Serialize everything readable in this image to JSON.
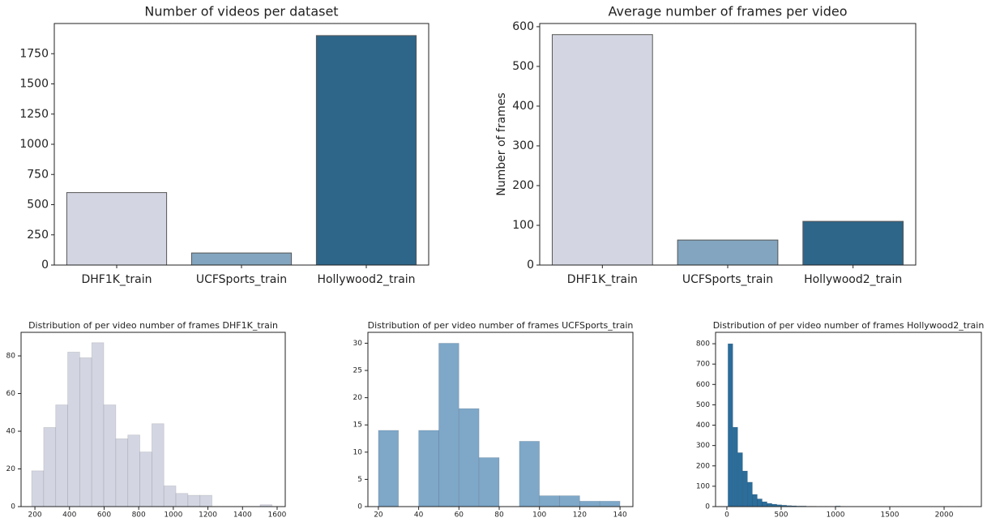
{
  "chart_data": [
    {
      "type": "bar",
      "title": "Number of videos per dataset",
      "categories": [
        "DHF1K_train",
        "UCFSports_train",
        "Hollywood2_train"
      ],
      "values": [
        600,
        100,
        1900
      ],
      "colors": [
        "#d3d6e2",
        "#83a5bf",
        "#2d6689"
      ],
      "ylim": [
        0,
        2000
      ],
      "yticks": [
        0,
        250,
        500,
        750,
        1000,
        1250,
        1500,
        1750
      ]
    },
    {
      "type": "bar",
      "title": "Average number of frames per video",
      "ylabel": "Number of frames",
      "categories": [
        "DHF1K_train",
        "UCFSports_train",
        "Hollywood2_train"
      ],
      "values": [
        580,
        63,
        110
      ],
      "colors": [
        "#d3d6e2",
        "#83a5bf",
        "#2d6689"
      ],
      "ylim": [
        0,
        608
      ],
      "yticks": [
        0,
        100,
        200,
        300,
        400,
        500,
        600
      ]
    },
    {
      "type": "histogram",
      "title": "Distribution of per video number of frames DHF1K_train",
      "bins": [
        181,
        250.5,
        320,
        389.5,
        459,
        528.5,
        598,
        667.5,
        737,
        806.5,
        876,
        945.5,
        1015,
        1084.5,
        1154,
        1223.5,
        1293,
        1362.5,
        1432,
        1501.5,
        1571
      ],
      "values": [
        19,
        42,
        54,
        82,
        79,
        87,
        54,
        36,
        38,
        29,
        44,
        11,
        7,
        6,
        6,
        0,
        0,
        0,
        0,
        1
      ],
      "color": "#d3d6e2",
      "xlim": [
        120,
        1647
      ],
      "xticks": [
        200,
        400,
        600,
        800,
        1000,
        1200,
        1400,
        1600
      ],
      "ylim": [
        0,
        92.5
      ],
      "yticks": [
        0,
        20,
        40,
        60,
        80
      ]
    },
    {
      "type": "histogram",
      "title": "Distribution of per video number of frames UCFSports_train",
      "bins": [
        20,
        30,
        40,
        50,
        60,
        70,
        80,
        90,
        100,
        110,
        120,
        130,
        140
      ],
      "values": [
        14,
        0,
        14,
        30,
        18,
        9,
        0,
        12,
        2,
        2,
        1,
        1
      ],
      "color": "#7ea7c8",
      "xlim": [
        14.8,
        146.4
      ],
      "xticks": [
        20,
        40,
        60,
        80,
        100,
        120,
        140
      ],
      "ylim": [
        0,
        32
      ],
      "yticks": [
        0,
        5,
        10,
        15,
        20,
        25,
        30
      ]
    },
    {
      "type": "histogram",
      "title": "Distribution of per video number of frames Hollywood2_train",
      "bins": [
        10,
        55,
        100,
        145,
        190,
        235,
        280,
        325,
        370,
        415,
        460,
        505,
        550,
        595,
        640,
        685,
        730,
        775,
        820,
        865,
        910,
        955,
        1000,
        1045,
        1090,
        1135,
        1180,
        1225,
        1270,
        1315,
        1360,
        1405,
        1450,
        1495,
        1540,
        1585,
        1630,
        1675,
        1720,
        1765,
        1810,
        1855,
        1900,
        1945,
        1990,
        2035,
        2080,
        2125,
        2170
      ],
      "values": [
        800,
        390,
        265,
        175,
        120,
        60,
        38,
        24,
        16,
        12,
        9,
        7,
        5,
        4,
        3,
        3,
        2,
        2,
        1,
        1,
        1,
        1,
        3,
        1,
        0,
        0,
        0,
        0,
        0,
        0,
        0,
        0,
        0,
        0,
        0,
        0,
        0,
        0,
        0,
        0,
        0,
        0,
        0,
        0,
        0,
        0,
        0,
        1
      ],
      "color": "#2b6d9b",
      "xlim": [
        -104,
        2343
      ],
      "xticks": [
        0,
        500,
        1000,
        1500,
        2000
      ],
      "ylim": [
        0,
        856
      ],
      "yticks": [
        0,
        100,
        200,
        300,
        400,
        500,
        600,
        700,
        800
      ]
    }
  ]
}
